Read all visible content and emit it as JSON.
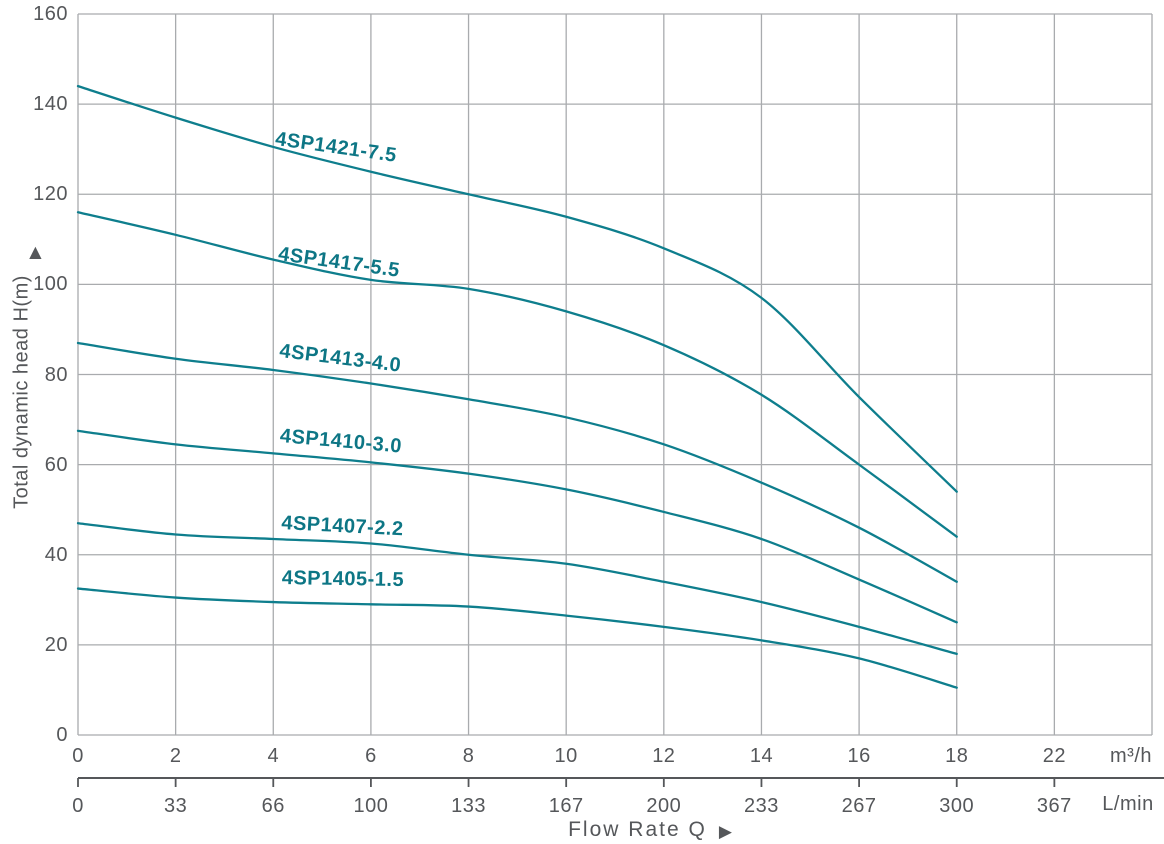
{
  "colors": {
    "curve": "#0e7e8d",
    "curve_label": "#0d7685",
    "grid": "#a9abae",
    "axis_secondary": "#55575a",
    "text": "#55575a"
  },
  "y_axis": {
    "title": "Total dynamic head H(m)",
    "arrow": "▲",
    "tick_labels": [
      "160",
      "140",
      "120",
      "100",
      "80",
      "60",
      "40",
      "20",
      "0"
    ]
  },
  "x_axis_primary": {
    "tick_labels": [
      "0",
      "2",
      "4",
      "6",
      "8",
      "10",
      "12",
      "14",
      "16",
      "18",
      "22"
    ],
    "unit": "m³/h"
  },
  "x_axis_secondary": {
    "tick_labels": [
      "0",
      "33",
      "66",
      "100",
      "133",
      "167",
      "200",
      "233",
      "267",
      "300",
      "367"
    ],
    "unit": "L/min"
  },
  "x_title": {
    "label": "Flow Rate Q",
    "arrow": "▶"
  },
  "chart_data": {
    "type": "line",
    "xlabel": "Flow Rate Q",
    "ylabel": "Total dynamic head H(m)",
    "x_units": [
      "m³/h",
      "L/min"
    ],
    "x_ticks_m3h": [
      0,
      2,
      4,
      6,
      8,
      10,
      12,
      14,
      16,
      18,
      22
    ],
    "x_ticks_lmin": [
      0,
      33,
      66,
      100,
      133,
      167,
      200,
      233,
      267,
      300,
      367
    ],
    "ylim": [
      0,
      160
    ],
    "y_tick_step": 20,
    "grid": true,
    "legend_position": "inline-curve-labels",
    "x_m3h": [
      0,
      2,
      4,
      6,
      8,
      10,
      12,
      14,
      16,
      18
    ],
    "series": [
      {
        "name": "4SP1421-7.5",
        "head_m": [
          144,
          137,
          130.5,
          125,
          120,
          115,
          108,
          97,
          75,
          54
        ]
      },
      {
        "name": "4SP1417-5.5",
        "head_m": [
          116,
          111,
          105.5,
          101,
          99,
          94,
          86.5,
          75.5,
          60,
          44
        ]
      },
      {
        "name": "4SP1413-4.0",
        "head_m": [
          87,
          83.5,
          81,
          78,
          74.5,
          70.5,
          64.5,
          56,
          46,
          34
        ]
      },
      {
        "name": "4SP1410-3.0",
        "head_m": [
          67.5,
          64.5,
          62.5,
          60.5,
          58,
          54.5,
          49.5,
          43.5,
          34.5,
          25
        ]
      },
      {
        "name": "4SP1407-2.2",
        "head_m": [
          47,
          44.5,
          43.5,
          42.5,
          40,
          38,
          34,
          29.5,
          24,
          18
        ]
      },
      {
        "name": "4SP1405-1.5",
        "head_m": [
          32.5,
          30.5,
          29.5,
          29,
          28.5,
          26.5,
          24,
          21,
          17,
          10.5
        ]
      }
    ]
  }
}
